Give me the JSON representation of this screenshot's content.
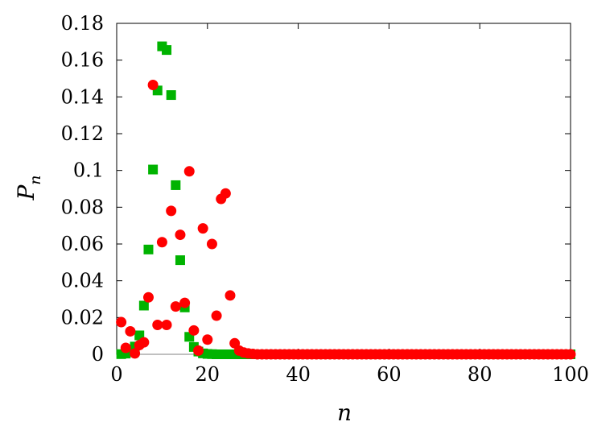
{
  "chart_data": {
    "type": "scatter",
    "xlabel": "n",
    "ylabel": {
      "main": "P",
      "sub": "n"
    },
    "xlim": [
      0,
      100
    ],
    "ylim": [
      0,
      0.18
    ],
    "xticks": [
      0,
      20,
      40,
      60,
      80,
      100
    ],
    "xtick_labels": [
      "0",
      "20",
      "40",
      "60",
      "80",
      "100"
    ],
    "yticks": [
      0,
      0.02,
      0.04,
      0.06,
      0.08,
      0.1,
      0.12,
      0.14,
      0.16,
      0.18
    ],
    "ytick_labels": [
      "0",
      "0.02",
      "0.04",
      "0.06",
      "0.08",
      "0.1",
      "0.12",
      "0.14",
      "0.16",
      "0.18"
    ],
    "grid": false,
    "legend": "none",
    "baseline": {
      "y": 0,
      "color": "#808080"
    },
    "series": [
      {
        "marker": "square",
        "color": "#00b300",
        "x": [
          1,
          2,
          3,
          4,
          5,
          6,
          7,
          8,
          9,
          10,
          11,
          12,
          13,
          14,
          15,
          16,
          17,
          18,
          19,
          20,
          21,
          22,
          23,
          24,
          25,
          26,
          27,
          28,
          29,
          30
        ],
        "y": [
          0.0001,
          0.0004,
          0.0015,
          0.0042,
          0.0103,
          0.0265,
          0.057,
          0.1005,
          0.1435,
          0.1675,
          0.1655,
          0.141,
          0.092,
          0.0512,
          0.0255,
          0.0095,
          0.004,
          0.0015,
          0.0005,
          0.0002,
          0.0001,
          0,
          0,
          0,
          0,
          0,
          0,
          0,
          0,
          0
        ],
        "tail_from": 31,
        "tail_to": 100,
        "tail_value": 0
      },
      {
        "marker": "circle",
        "color": "#ff0000",
        "x": [
          1,
          2,
          3,
          4,
          5,
          6,
          7,
          8,
          9,
          10,
          11,
          12,
          13,
          14,
          15,
          16,
          17,
          18,
          19,
          20,
          21,
          22,
          23,
          24,
          25,
          26,
          27,
          28,
          29,
          30
        ],
        "y": [
          0.0175,
          0.0035,
          0.0125,
          0.0005,
          0.005,
          0.0065,
          0.031,
          0.1465,
          0.016,
          0.061,
          0.016,
          0.078,
          0.026,
          0.065,
          0.028,
          0.0995,
          0.013,
          0.002,
          0.0685,
          0.008,
          0.06,
          0.021,
          0.0845,
          0.0875,
          0.032,
          0.006,
          0.002,
          0.001,
          0.0005,
          0.0002
        ],
        "tail_from": 31,
        "tail_to": 100,
        "tail_value": 0
      }
    ]
  }
}
